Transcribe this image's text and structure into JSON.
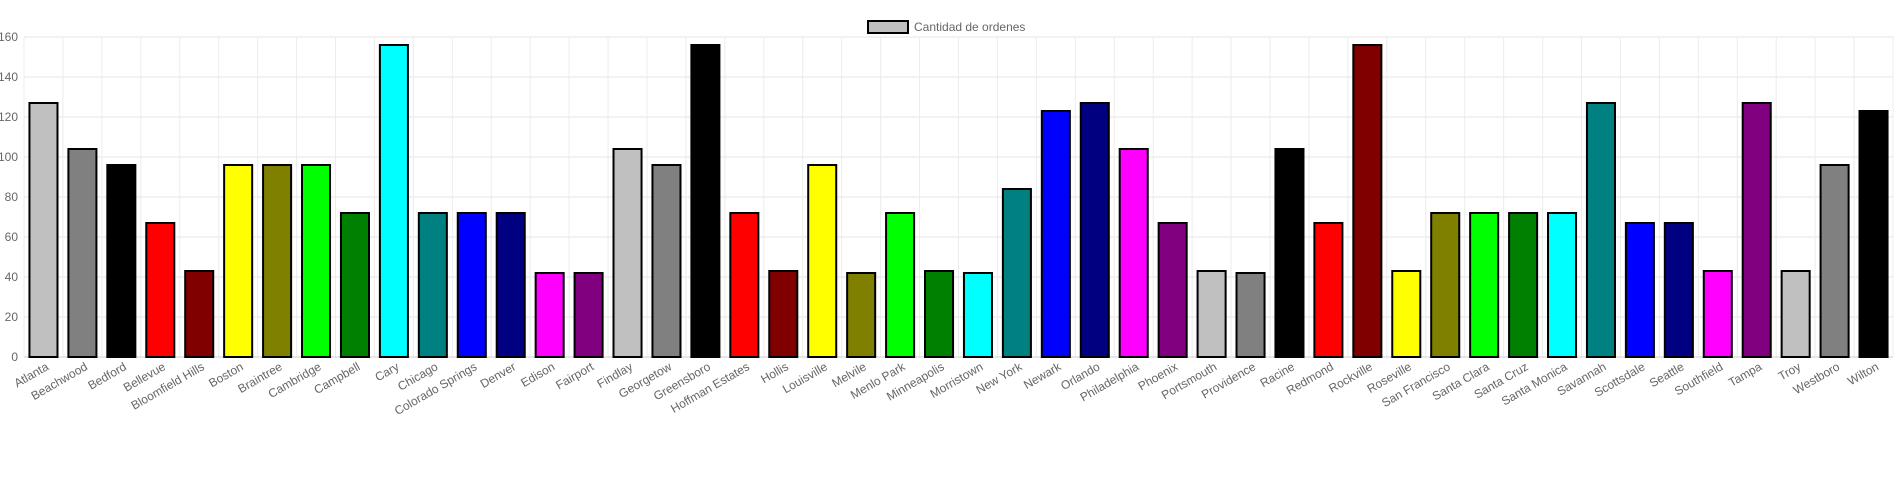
{
  "chart_data": {
    "type": "bar",
    "legend": {
      "label": "Cantidad de ordenes",
      "swatch_color": "#c0c0c0",
      "position": "top-center"
    },
    "ylim": [
      0,
      160
    ],
    "y_ticks": [
      0,
      20,
      40,
      60,
      80,
      100,
      120,
      140,
      160
    ],
    "grid": true,
    "bar_border_color": "#000000",
    "categories": [
      "Atlanta",
      "Beachwood",
      "Bedford",
      "Bellevue",
      "Bloomfield Hills",
      "Boston",
      "Braintree",
      "Cambridge",
      "Campbell",
      "Cary",
      "Chicago",
      "Colorado Springs",
      "Denver",
      "Edison",
      "Fairport",
      "Findlay",
      "Georgetow",
      "Greensboro",
      "Hoffman Estates",
      "Hollis",
      "Louisville",
      "Melvile",
      "Menlo Park",
      "Minneapolis",
      "Morristown",
      "New York",
      "Newark",
      "Orlando",
      "Philadelphia",
      "Phoenix",
      "Portsmouth",
      "Providence",
      "Racine",
      "Redmond",
      "Rockville",
      "Roseville",
      "San Francisco",
      "Santa Clara",
      "Santa Cruz",
      "Santa Monica",
      "Savannah",
      "Scottsdale",
      "Seattle",
      "Southfield",
      "Tampa",
      "Troy",
      "Westboro",
      "Wilton"
    ],
    "values": [
      127,
      104,
      96,
      67,
      43,
      96,
      96,
      96,
      72,
      156,
      72,
      72,
      72,
      42,
      42,
      104,
      96,
      156,
      72,
      43,
      96,
      42,
      72,
      43,
      42,
      84,
      123,
      127,
      104,
      67,
      43,
      42,
      104,
      67,
      156,
      43,
      72,
      72,
      72,
      72,
      127,
      67,
      67,
      43,
      127,
      43,
      96,
      123
    ],
    "colors": [
      "#c0c0c0",
      "#808080",
      "#000000",
      "#ff0000",
      "#800000",
      "#ffff00",
      "#808000",
      "#00ff00",
      "#008000",
      "#00ffff",
      "#008080",
      "#0000ff",
      "#000080",
      "#ff00ff",
      "#800080",
      "#c0c0c0",
      "#808080",
      "#000000",
      "#ff0000",
      "#800000",
      "#ffff00",
      "#808000",
      "#00ff00",
      "#008000",
      "#00ffff",
      "#008080",
      "#0000ff",
      "#000080",
      "#ff00ff",
      "#800080",
      "#c0c0c0",
      "#808080",
      "#000000",
      "#ff0000",
      "#800000",
      "#ffff00",
      "#808000",
      "#00ff00",
      "#008000",
      "#00ffff",
      "#008080",
      "#0000ff",
      "#000080",
      "#ff00ff",
      "#800080",
      "#c0c0c0",
      "#808080",
      "#000000"
    ]
  }
}
